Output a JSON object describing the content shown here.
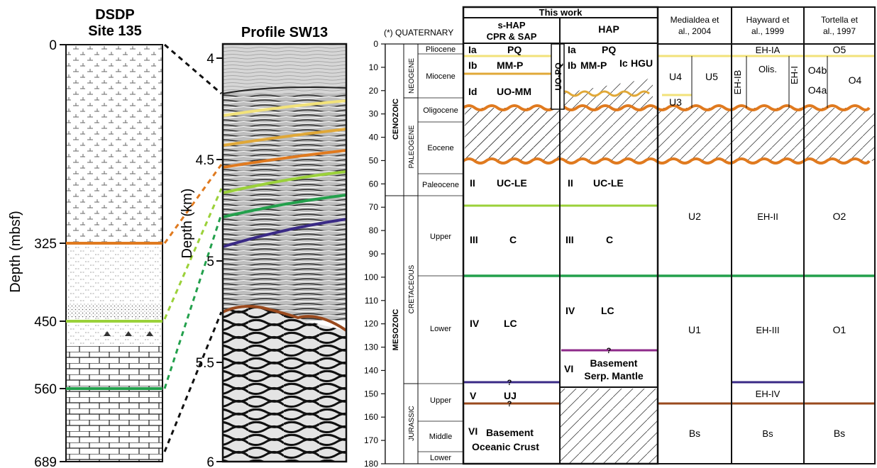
{
  "dsdp": {
    "title_line1": "DSDP",
    "title_line2": "Site 135",
    "ylabel": "Depth (mbsf)",
    "ticks": [
      "0",
      "325",
      "450",
      "560",
      "689"
    ]
  },
  "profile": {
    "title": "Profile SW13",
    "ylabel": "Depth (km)",
    "ticks": [
      "4",
      "4.5",
      "5",
      "5.5",
      "6"
    ]
  },
  "timescale": {
    "quaternary_label": "(*) QUATERNARY",
    "ages": [
      "0",
      "10",
      "20",
      "30",
      "40",
      "50",
      "60",
      "70",
      "80",
      "90",
      "100",
      "110",
      "120",
      "130",
      "140",
      "150",
      "160",
      "170",
      "180"
    ],
    "eras": [
      "CENOZOIC",
      "MESOZOIC"
    ],
    "periods": [
      "NEOGENE",
      "PALEOGENE",
      "CRETACEOUS",
      "JURASSIC"
    ],
    "epochs": [
      "Pliocene",
      "Miocene",
      "Oligocene",
      "Eocene",
      "Paleocene",
      "Upper",
      "Lower",
      "Upper",
      "Middle",
      "Lower"
    ]
  },
  "table": {
    "this_work": "This work",
    "shap_line1": "s-HAP",
    "shap_line2": "CPR & SAP",
    "hap": "HAP",
    "medialdea_line1": "Medialdea et",
    "medialdea_line2": "al., 2004",
    "hayward_line1": "Hayward et",
    "hayward_line2": "al., 1999",
    "tortella_line1": "Tortella et",
    "tortella_line2": "al., 1997"
  },
  "units": {
    "shap": {
      "ia_n": "Ia",
      "ia_l": "PQ",
      "ib_n": "Ib",
      "ib_l": "MM-P",
      "id_n": "Id",
      "id_l": "UO-MM",
      "uopq": "UO-PQ",
      "ii_n": "II",
      "ii_l": "UC-LE",
      "iii_n": "III",
      "iii_l": "C",
      "iv_n": "IV",
      "iv_l": "LC",
      "q": "?",
      "v_n": "V",
      "v_l": "UJ",
      "vi_n": "VI",
      "vi_l1": "Basement",
      "vi_l2": "Oceanic Crust"
    },
    "hap": {
      "ia_n": "Ia",
      "ia_l": "PQ",
      "ib_n": "Ib",
      "ib_l": "MM-P",
      "ic_n": "Ic",
      "hgu": "HGU",
      "ii_n": "II",
      "ii_l": "UC-LE",
      "iii_n": "III",
      "iii_l": "C",
      "iv_n": "IV",
      "iv_l": "LC",
      "q": "?",
      "vi_n": "VI",
      "vi_l1": "Basement",
      "vi_l2": "Serp. Mantle"
    },
    "medialdea": [
      "U4",
      "U5",
      "U3",
      "U2",
      "U1",
      "Bs"
    ],
    "hayward": [
      "EH-IA",
      "EH-IB",
      "Olis.",
      "EH-I",
      "EH-II",
      "EH-III",
      "EH-IV",
      "Bs"
    ],
    "tortella": [
      "O5",
      "O4b",
      "O4a",
      "O4",
      "O2",
      "O1",
      "Bs"
    ]
  },
  "colors": {
    "yellow": "#f2e27a",
    "gold": "#e0a838",
    "orange": "#e07a1f",
    "lightgreen": "#9bd13a",
    "green": "#23a04c",
    "navy": "#3a2a86",
    "brown": "#9a4a1e",
    "purple": "#8e2a8a",
    "dashblack": "#111111"
  }
}
